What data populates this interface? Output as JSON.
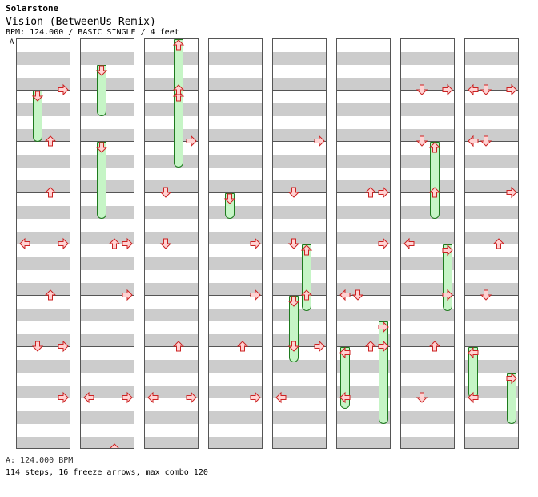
{
  "header": {
    "artist": "Solarstone",
    "title": "Vision (BetweenUs Remix)",
    "meta": "BPM: 124.000 / BASIC SINGLE / 4 feet",
    "bpm_marker": "A"
  },
  "footer": {
    "bpm_line": "A: 124.000 BPM",
    "stats": "114 steps, 16 freeze arrows, max combo 120"
  },
  "colors": {
    "arrow_fill": "#ffd2d2",
    "arrow_stroke": "#cc2222",
    "freeze_fill": "#c6f5c6",
    "freeze_stroke": "#1e7a1e",
    "stripe": "#cccccc",
    "border": "#555555"
  },
  "chart": {
    "columns": 8,
    "measures_per_column": 8,
    "lanes": [
      "left",
      "down",
      "up",
      "right"
    ],
    "icon_names": {
      "left": "left-arrow-icon",
      "down": "down-arrow-icon",
      "up": "up-arrow-icon",
      "right": "right-arrow-icon"
    },
    "notes": [
      [
        [
          1,
          "right"
        ],
        [
          2,
          "up"
        ],
        [
          3,
          "up"
        ],
        [
          4,
          "left"
        ],
        [
          4,
          "right"
        ],
        [
          5,
          "up"
        ],
        [
          6,
          "right"
        ],
        [
          6,
          "down"
        ],
        [
          7,
          "right"
        ]
      ],
      [
        [
          4,
          "up"
        ],
        [
          4,
          "right"
        ],
        [
          5,
          "right"
        ],
        [
          7,
          "left"
        ],
        [
          7,
          "right"
        ],
        [
          8,
          "up"
        ]
      ],
      [
        [
          1,
          "up"
        ],
        [
          2,
          "right"
        ],
        [
          3,
          "down"
        ],
        [
          4,
          "down"
        ],
        [
          6,
          "up"
        ],
        [
          7,
          "right"
        ],
        [
          7,
          "left"
        ]
      ],
      [
        [
          4,
          "right"
        ],
        [
          5,
          "right"
        ],
        [
          6,
          "up"
        ],
        [
          7,
          "right"
        ]
      ],
      [
        [
          2,
          "right"
        ],
        [
          3,
          "down"
        ],
        [
          4,
          "down"
        ],
        [
          5,
          "up"
        ],
        [
          6,
          "right"
        ],
        [
          6,
          "down"
        ],
        [
          7,
          "left"
        ]
      ],
      [
        [
          3,
          "right"
        ],
        [
          3,
          "up"
        ],
        [
          4,
          "right"
        ],
        [
          5,
          "left"
        ],
        [
          5,
          "down"
        ],
        [
          6,
          "up"
        ],
        [
          6,
          "right"
        ],
        [
          7,
          "left"
        ]
      ],
      [
        [
          1,
          "down"
        ],
        [
          1,
          "right"
        ],
        [
          2,
          "down"
        ],
        [
          3,
          "up"
        ],
        [
          4,
          "left"
        ],
        [
          5,
          "right"
        ],
        [
          6,
          "up"
        ],
        [
          7,
          "down"
        ]
      ],
      [
        [
          1,
          "left"
        ],
        [
          1,
          "down"
        ],
        [
          1,
          "right"
        ],
        [
          2,
          "left"
        ],
        [
          2,
          "down"
        ],
        [
          3,
          "right"
        ],
        [
          4,
          "up"
        ],
        [
          5,
          "down"
        ],
        [
          7,
          "left"
        ]
      ]
    ],
    "freezes": [
      [
        [
          1,
          "down",
          1,
          2
        ]
      ],
      [
        [
          1,
          "down",
          0.5,
          1.5
        ],
        [
          2,
          "down",
          2,
          3.5
        ]
      ],
      [
        [
          1,
          "up",
          0,
          1.5
        ],
        [
          2,
          "up",
          1,
          2.5
        ]
      ],
      [
        [
          1,
          "down",
          3,
          3.5
        ]
      ],
      [
        [
          2,
          "up",
          4,
          5.3
        ],
        [
          3,
          "down",
          5,
          6.3
        ]
      ],
      [
        [
          1,
          "left",
          6,
          7.2
        ],
        [
          3,
          "right",
          5.5,
          7.5
        ]
      ],
      [
        [
          3,
          "up",
          2,
          3.5
        ],
        [
          4,
          "right",
          4,
          5.3
        ]
      ],
      [
        [
          1,
          "left",
          6,
          7
        ],
        [
          3,
          "right",
          6.5,
          7.5
        ]
      ]
    ]
  }
}
